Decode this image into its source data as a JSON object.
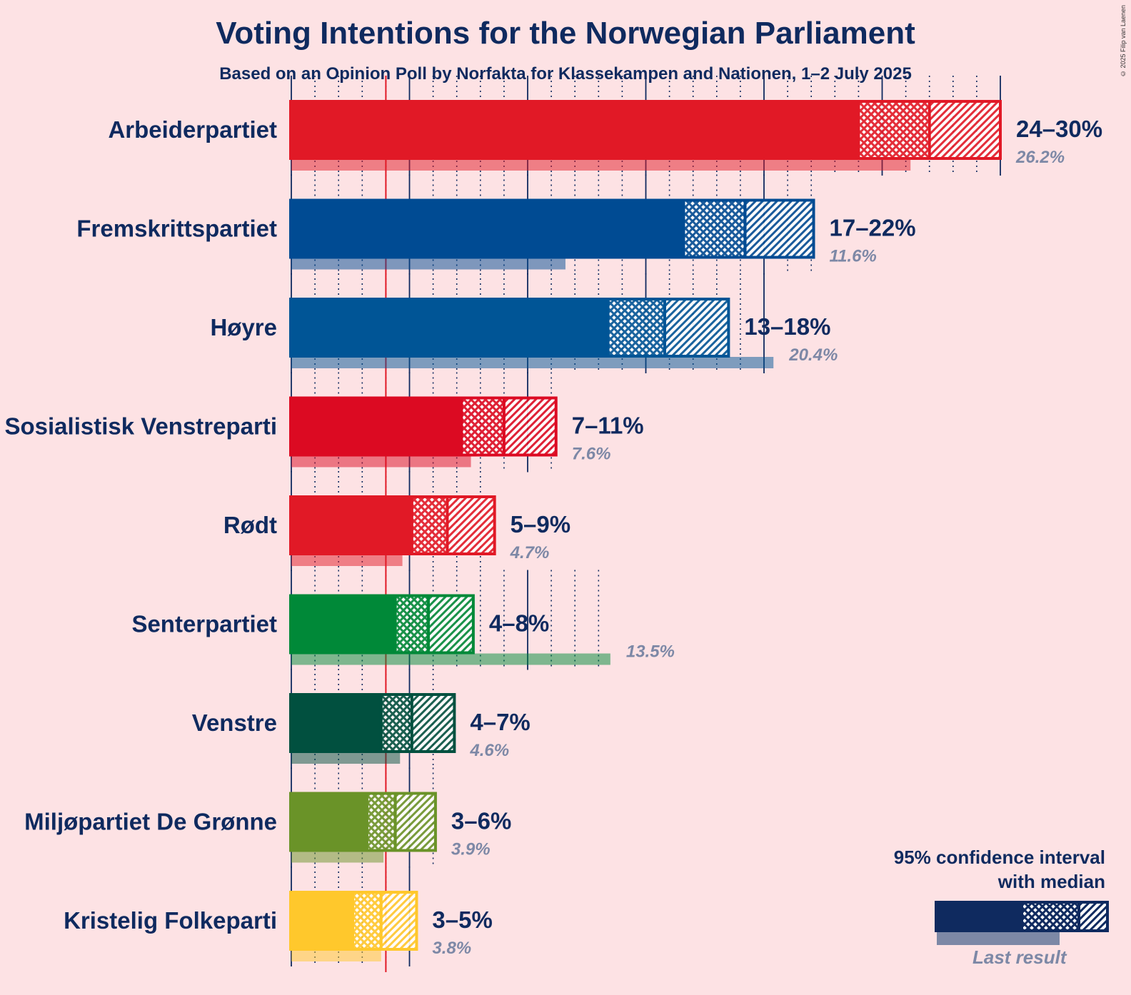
{
  "title": "Voting Intentions for the Norwegian Parliament",
  "subtitle": "Based on an Opinion Poll by Norfakta for Klassekampen and Nationen, 1–2 July 2025",
  "copyright": "© 2025 Filip van Laenen",
  "legend": {
    "title_line1": "95% confidence interval",
    "title_line2": "with median",
    "last_result": "Last result"
  },
  "chart_data": {
    "type": "bar",
    "orientation": "horizontal",
    "title": "Voting Intentions for the Norwegian Parliament",
    "xlim": [
      0,
      30
    ],
    "threshold": 4,
    "parties": [
      {
        "name": "Arbeiderpartiet",
        "color": "#E11926",
        "ci_low": 24,
        "median": 27,
        "ci_high": 30,
        "range_label": "24–30%",
        "last_result": 26.2,
        "last_label": "26.2%"
      },
      {
        "name": "Fremskrittspartiet",
        "color": "#004B93",
        "ci_low": 16.6,
        "median": 19.2,
        "ci_high": 22.1,
        "range_label": "17–22%",
        "last_result": 11.6,
        "last_label": "11.6%"
      },
      {
        "name": "Høyre",
        "color": "#005596",
        "ci_low": 13.4,
        "median": 15.8,
        "ci_high": 18.5,
        "range_label": "13–18%",
        "last_result": 20.4,
        "last_label": "20.4%"
      },
      {
        "name": "Sosialistisk Venstreparti",
        "color": "#DC0A22",
        "ci_low": 7.2,
        "median": 9,
        "ci_high": 11.2,
        "range_label": "7–11%",
        "last_result": 7.6,
        "last_label": "7.6%"
      },
      {
        "name": "Rødt",
        "color": "#E11926",
        "ci_low": 5.1,
        "median": 6.6,
        "ci_high": 8.6,
        "range_label": "5–9%",
        "last_result": 4.7,
        "last_label": "4.7%"
      },
      {
        "name": "Senterpartiet",
        "color": "#008938",
        "ci_low": 4.4,
        "median": 5.8,
        "ci_high": 7.7,
        "range_label": "4–8%",
        "last_result": 13.5,
        "last_label": "13.5%"
      },
      {
        "name": "Venstre",
        "color": "#01503F",
        "ci_low": 3.8,
        "median": 5.1,
        "ci_high": 6.9,
        "range_label": "4–7%",
        "last_result": 4.6,
        "last_label": "4.6%"
      },
      {
        "name": "Miljøpartiet De Grønne",
        "color": "#6A9328",
        "ci_low": 3.2,
        "median": 4.4,
        "ci_high": 6.1,
        "range_label": "3–6%",
        "last_result": 3.9,
        "last_label": "3.9%"
      },
      {
        "name": "Kristelig Folkeparti",
        "color": "#FFC82C",
        "ci_low": 2.6,
        "median": 3.8,
        "ci_high": 5.3,
        "range_label": "3–5%",
        "last_result": 3.8,
        "last_label": "3.8%"
      }
    ]
  }
}
